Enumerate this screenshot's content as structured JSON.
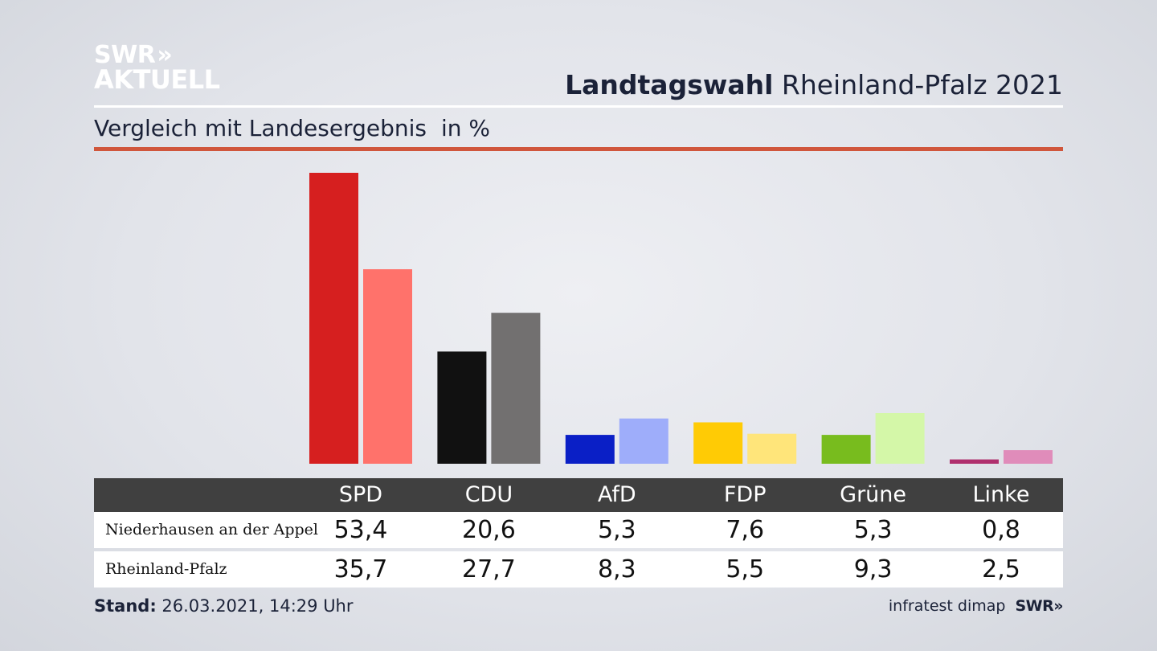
{
  "logo": {
    "line1": "SWR",
    "chevrons": "»",
    "line2": "AKTUELL"
  },
  "header": {
    "title_bold": "Landtagswahl",
    "title_rest": "Rheinland-Pfalz 2021"
  },
  "subtitle": {
    "text": "Vergleich mit Landesergebnis",
    "unit": "in %"
  },
  "chart_data": {
    "type": "bar",
    "title": "Landtagswahl Rheinland-Pfalz 2021",
    "subtitle": "Vergleich mit Landesergebnis",
    "unit": "in %",
    "categories": [
      "SPD",
      "CDU",
      "AfD",
      "FDP",
      "Grüne",
      "Linke"
    ],
    "series": [
      {
        "name": "Niederhausen an der Appel",
        "values": [
          53.4,
          20.6,
          5.3,
          7.6,
          5.3,
          0.8
        ],
        "value_labels": [
          "53,4",
          "20,6",
          "5,3",
          "7,6",
          "5,3",
          "0,8"
        ],
        "colors": [
          "#d61f1f",
          "#111111",
          "#0a1fc6",
          "#ffcb05",
          "#78bc1e",
          "#b0306e"
        ]
      },
      {
        "name": "Rheinland-Pfalz",
        "values": [
          35.7,
          27.7,
          8.3,
          5.5,
          9.3,
          2.5
        ],
        "value_labels": [
          "35,7",
          "27,7",
          "8,3",
          "5,5",
          "9,3",
          "2,5"
        ],
        "colors": [
          "#ff726b",
          "#727070",
          "#9eadfa",
          "#ffe57a",
          "#d4f7a8",
          "#e08cba"
        ]
      }
    ],
    "ylim": [
      0,
      53.4
    ],
    "grid": false,
    "legend": "table-below"
  },
  "footer": {
    "stand_label": "Stand:",
    "stand_value": "26.03.2021, 14:29 Uhr",
    "source": "infratest dimap",
    "source_logo": "SWR»"
  }
}
